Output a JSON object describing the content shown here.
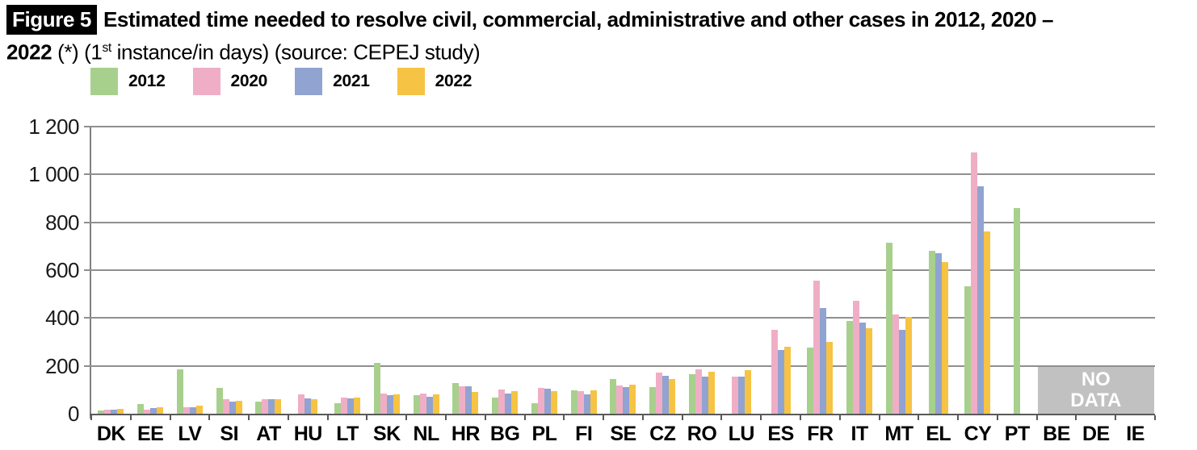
{
  "figure": {
    "badge": "Figure 5",
    "line1_bold": "Estimated time needed to resolve civil, commercial, administrative and other cases in 2012, 2020 –",
    "line2_bold": "2022",
    "line2_normal_a": " (*) (1",
    "line2_sup": "st",
    "line2_normal_b": " instance/in days) (source: CEPEJ study)"
  },
  "chart_data": {
    "type": "bar",
    "title": "Estimated time needed to resolve civil, commercial, administrative and other cases in 2012, 2020 – 2022 (*) (1st instance/in days) (source: CEPEJ study)",
    "ylabel": "days",
    "ylim": [
      0,
      1200
    ],
    "ytick_interval": 200,
    "yticks": [
      {
        "value": 0,
        "label": "0"
      },
      {
        "value": 200,
        "label": "200"
      },
      {
        "value": 400,
        "label": "400"
      },
      {
        "value": 600,
        "label": "600"
      },
      {
        "value": 800,
        "label": "800"
      },
      {
        "value": 1000,
        "label": "1 000"
      },
      {
        "value": 1200,
        "label": "1 200"
      }
    ],
    "grid": "horizontal",
    "legend_position": "top-left",
    "categories": [
      "DK",
      "EE",
      "LV",
      "SI",
      "AT",
      "HU",
      "LT",
      "SK",
      "NL",
      "HR",
      "BG",
      "PL",
      "FI",
      "SE",
      "CZ",
      "RO",
      "LU",
      "ES",
      "FR",
      "IT",
      "MT",
      "EL",
      "CY",
      "PT",
      "BE",
      "DE",
      "IE"
    ],
    "series": [
      {
        "name": "2012",
        "color": "#a8d08d",
        "values": [
          14,
          40,
          186,
          107,
          50,
          null,
          43,
          214,
          78,
          128,
          66,
          45,
          97,
          144,
          112,
          165,
          null,
          null,
          275,
          389,
          714,
          680,
          533,
          861,
          null,
          null,
          null
        ]
      },
      {
        "name": "2020",
        "color": "#f0aec6",
        "values": [
          18,
          18,
          28,
          62,
          61,
          82,
          68,
          83,
          84,
          115,
          100,
          108,
          94,
          118,
          172,
          186,
          155,
          350,
          556,
          472,
          413,
          null,
          1093,
          null,
          null,
          null,
          null
        ]
      },
      {
        "name": "2021",
        "color": "#91a3d0",
        "values": [
          18,
          25,
          27,
          49,
          61,
          64,
          64,
          79,
          72,
          115,
          83,
          105,
          80,
          110,
          157,
          155,
          155,
          265,
          440,
          380,
          349,
          670,
          950,
          null,
          null,
          null,
          null
        ]
      },
      {
        "name": "2022",
        "color": "#f6c344",
        "values": [
          20,
          28,
          33,
          54,
          61,
          60,
          66,
          81,
          80,
          92,
          96,
          96,
          97,
          121,
          146,
          175,
          181,
          280,
          299,
          358,
          404,
          635,
          762,
          null,
          null,
          null,
          null
        ]
      }
    ],
    "no_data": {
      "label": "NO DATA",
      "categories": [
        "BE",
        "DE",
        "IE"
      ],
      "value_top": 200
    }
  }
}
